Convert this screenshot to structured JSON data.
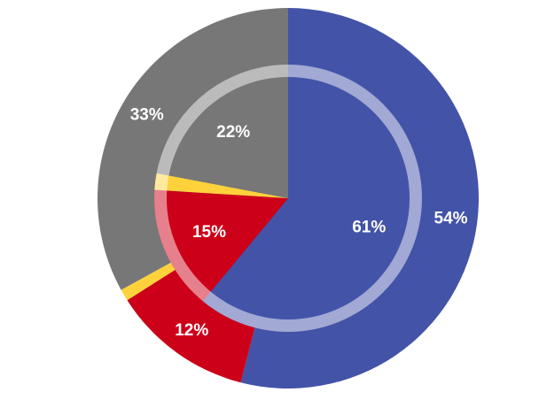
{
  "chart_data": {
    "type": "pie",
    "variant": "nested-donut",
    "title": "",
    "legend": "none",
    "colors": [
      "#4353A8",
      "#CC0019",
      "#FFD23C",
      "#777777"
    ],
    "outer": {
      "values": [
        54,
        12,
        1,
        33
      ],
      "labels": [
        "54%",
        "12%",
        "",
        "33%"
      ]
    },
    "inner": {
      "values": [
        61,
        15,
        2,
        22
      ],
      "labels": [
        "61%",
        "15%",
        "",
        "22%"
      ]
    }
  }
}
